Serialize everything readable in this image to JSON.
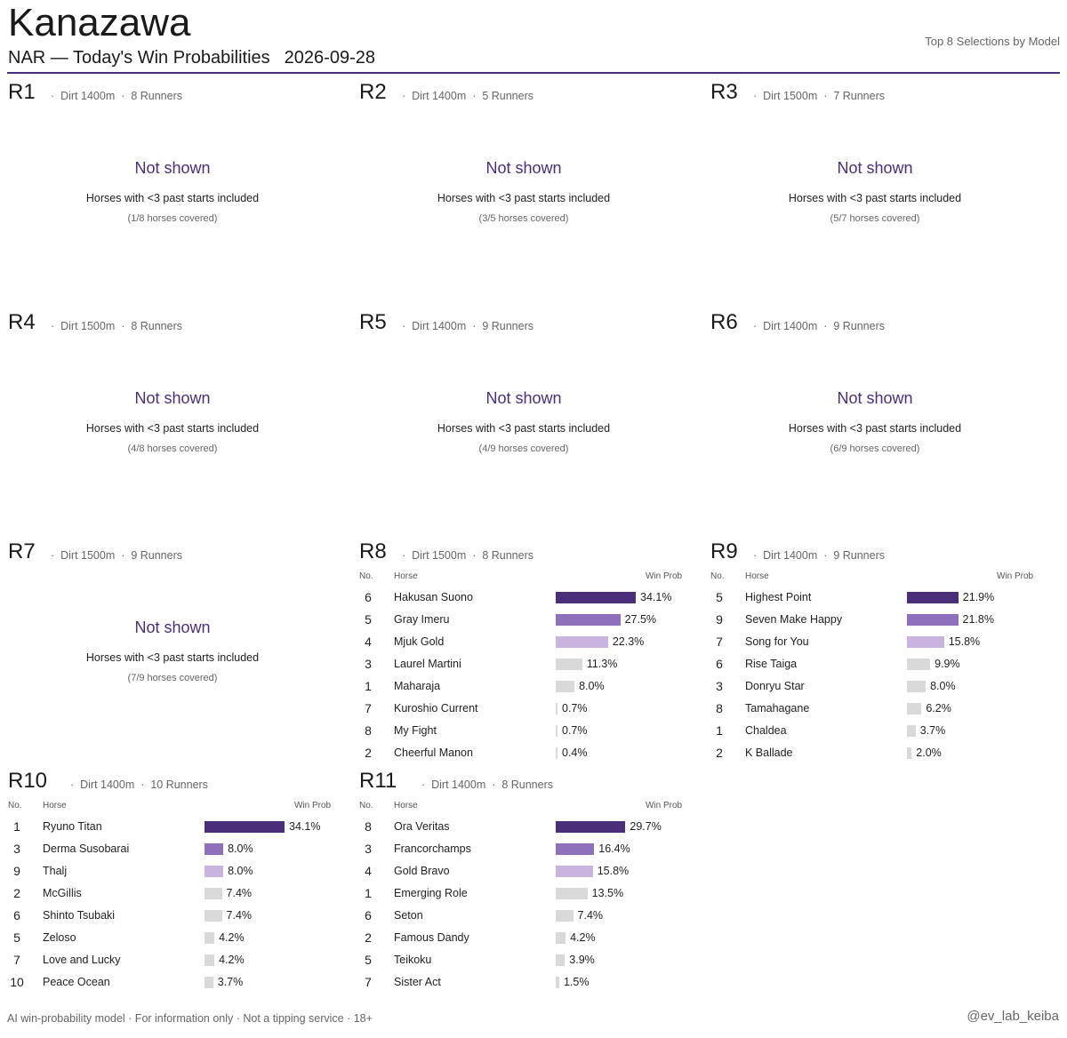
{
  "header": {
    "title": "Kanazawa",
    "subtitle": "NAR — Today's Win Probabilities",
    "date": "2026-09-28",
    "right_label": "Top 8 Selections by Model"
  },
  "labels": {
    "no": "No.",
    "horse": "Horse",
    "win_prob": "Win Prob"
  },
  "colors": {
    "accent": "#4b2e7a",
    "rank1": "#4b2e7a",
    "rank2": "#8e70bb",
    "rank3": "#c8b4de",
    "other": "#d9d9d9"
  },
  "footer": {
    "left": "AI win-probability model  ·  For information only  ·  Not a tipping service  ·  18+",
    "right": "@ev_lab_keiba"
  },
  "chart_data": {
    "type": "bar",
    "races": [
      {
        "race": "R1",
        "surface": "Dirt 1400m",
        "runners": "8 Runners",
        "shown": false,
        "note_title": "Not shown",
        "note": "Horses with <3 past starts included",
        "coverage": "(1/8 horses covered)"
      },
      {
        "race": "R2",
        "surface": "Dirt 1400m",
        "runners": "5 Runners",
        "shown": false,
        "note_title": "Not shown",
        "note": "Horses with <3 past starts included",
        "coverage": "(3/5 horses covered)"
      },
      {
        "race": "R3",
        "surface": "Dirt 1500m",
        "runners": "7 Runners",
        "shown": false,
        "note_title": "Not shown",
        "note": "Horses with <3 past starts included",
        "coverage": "(5/7 horses covered)"
      },
      {
        "race": "R4",
        "surface": "Dirt 1500m",
        "runners": "8 Runners",
        "shown": false,
        "note_title": "Not shown",
        "note": "Horses with <3 past starts included",
        "coverage": "(4/8 horses covered)"
      },
      {
        "race": "R5",
        "surface": "Dirt 1400m",
        "runners": "9 Runners",
        "shown": false,
        "note_title": "Not shown",
        "note": "Horses with <3 past starts included",
        "coverage": "(4/9 horses covered)"
      },
      {
        "race": "R6",
        "surface": "Dirt 1400m",
        "runners": "9 Runners",
        "shown": false,
        "note_title": "Not shown",
        "note": "Horses with <3 past starts included",
        "coverage": "(6/9 horses covered)"
      },
      {
        "race": "R7",
        "surface": "Dirt 1500m",
        "runners": "9 Runners",
        "shown": false,
        "note_title": "Not shown",
        "note": "Horses with <3 past starts included",
        "coverage": "(7/9 horses covered)"
      },
      {
        "race": "R8",
        "surface": "Dirt 1500m",
        "runners": "8 Runners",
        "shown": true,
        "entries": [
          {
            "no": "6",
            "horse": "Hakusan Suono",
            "prob": 34.1,
            "label": "34.1%"
          },
          {
            "no": "5",
            "horse": "Gray Imeru",
            "prob": 27.5,
            "label": "27.5%"
          },
          {
            "no": "4",
            "horse": "Mjuk Gold",
            "prob": 22.3,
            "label": "22.3%"
          },
          {
            "no": "3",
            "horse": "Laurel Martini",
            "prob": 11.3,
            "label": "11.3%"
          },
          {
            "no": "1",
            "horse": "Maharaja",
            "prob": 8.0,
            "label": "8.0%"
          },
          {
            "no": "7",
            "horse": "Kuroshio Current",
            "prob": 0.7,
            "label": "0.7%"
          },
          {
            "no": "8",
            "horse": "My Fight",
            "prob": 0.7,
            "label": "0.7%"
          },
          {
            "no": "2",
            "horse": "Cheerful Manon",
            "prob": 0.4,
            "label": "0.4%"
          }
        ]
      },
      {
        "race": "R9",
        "surface": "Dirt 1400m",
        "runners": "9 Runners",
        "shown": true,
        "entries": [
          {
            "no": "5",
            "horse": "Highest Point",
            "prob": 21.9,
            "label": "21.9%"
          },
          {
            "no": "9",
            "horse": "Seven Make Happy",
            "prob": 21.8,
            "label": "21.8%"
          },
          {
            "no": "7",
            "horse": "Song for You",
            "prob": 15.8,
            "label": "15.8%"
          },
          {
            "no": "6",
            "horse": "Rise Taiga",
            "prob": 9.9,
            "label": "9.9%"
          },
          {
            "no": "3",
            "horse": "Donryu Star",
            "prob": 8.0,
            "label": "8.0%"
          },
          {
            "no": "8",
            "horse": "Tamahagane",
            "prob": 6.2,
            "label": "6.2%"
          },
          {
            "no": "1",
            "horse": "Chaldea",
            "prob": 3.7,
            "label": "3.7%"
          },
          {
            "no": "2",
            "horse": "K Ballade",
            "prob": 2.0,
            "label": "2.0%"
          }
        ]
      },
      {
        "race": "R10",
        "surface": "Dirt 1400m",
        "runners": "10 Runners",
        "shown": true,
        "entries": [
          {
            "no": "1",
            "horse": "Ryuno Titan",
            "prob": 34.1,
            "label": "34.1%"
          },
          {
            "no": "3",
            "horse": "Derma Susobarai",
            "prob": 8.0,
            "label": "8.0%"
          },
          {
            "no": "9",
            "horse": "Thalj",
            "prob": 8.0,
            "label": "8.0%"
          },
          {
            "no": "2",
            "horse": "McGillis",
            "prob": 7.4,
            "label": "7.4%"
          },
          {
            "no": "6",
            "horse": "Shinto Tsubaki",
            "prob": 7.4,
            "label": "7.4%"
          },
          {
            "no": "5",
            "horse": "Zeloso",
            "prob": 4.2,
            "label": "4.2%"
          },
          {
            "no": "7",
            "horse": "Love and Lucky",
            "prob": 4.2,
            "label": "4.2%"
          },
          {
            "no": "10",
            "horse": "Peace Ocean",
            "prob": 3.7,
            "label": "3.7%"
          }
        ]
      },
      {
        "race": "R11",
        "surface": "Dirt 1400m",
        "runners": "8 Runners",
        "shown": true,
        "entries": [
          {
            "no": "8",
            "horse": "Ora Veritas",
            "prob": 29.7,
            "label": "29.7%"
          },
          {
            "no": "3",
            "horse": "Francorchamps",
            "prob": 16.4,
            "label": "16.4%"
          },
          {
            "no": "4",
            "horse": "Gold Bravo",
            "prob": 15.8,
            "label": "15.8%"
          },
          {
            "no": "1",
            "horse": "Emerging Role",
            "prob": 13.5,
            "label": "13.5%"
          },
          {
            "no": "6",
            "horse": "Seton",
            "prob": 7.4,
            "label": "7.4%"
          },
          {
            "no": "2",
            "horse": "Famous Dandy",
            "prob": 4.2,
            "label": "4.2%"
          },
          {
            "no": "5",
            "horse": "Teikoku",
            "prob": 3.9,
            "label": "3.9%"
          },
          {
            "no": "7",
            "horse": "Sister Act",
            "prob": 1.5,
            "label": "1.5%"
          }
        ]
      }
    ]
  }
}
